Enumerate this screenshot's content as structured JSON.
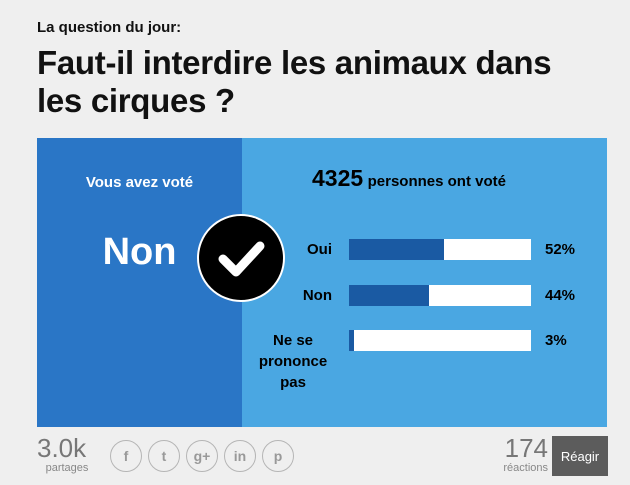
{
  "header": {
    "eyebrow": "La question du jour:",
    "question": "Faut-il interdire les animaux dans les cirques ?"
  },
  "vote": {
    "label": "Vous avez voté",
    "value": "Non",
    "icon": "checkmark-icon"
  },
  "results": {
    "total_count": "4325",
    "total_text": "personnes ont voté",
    "options": [
      {
        "label": "Oui",
        "percent": 52,
        "percent_text": "52%"
      },
      {
        "label": "Non",
        "percent": 44,
        "percent_text": "44%"
      },
      {
        "label": "Ne se prononce pas",
        "percent": 3,
        "percent_text": "3%"
      }
    ]
  },
  "footer": {
    "shares_count": "3.0k",
    "shares_label": "partages",
    "social": [
      {
        "name": "facebook-icon",
        "glyph": "f"
      },
      {
        "name": "twitter-icon",
        "glyph": "t"
      },
      {
        "name": "google-plus-icon",
        "glyph": "g+"
      },
      {
        "name": "linkedin-icon",
        "glyph": "in"
      },
      {
        "name": "pinterest-icon",
        "glyph": "p"
      }
    ],
    "reactions_count": "174",
    "reactions_label": "réactions",
    "react_button": "Réagir"
  },
  "colors": {
    "left_panel": "#2a76c6",
    "right_panel": "#4aa7e2",
    "bar_fill": "#1a5aa3",
    "button": "#5c5c5c"
  }
}
